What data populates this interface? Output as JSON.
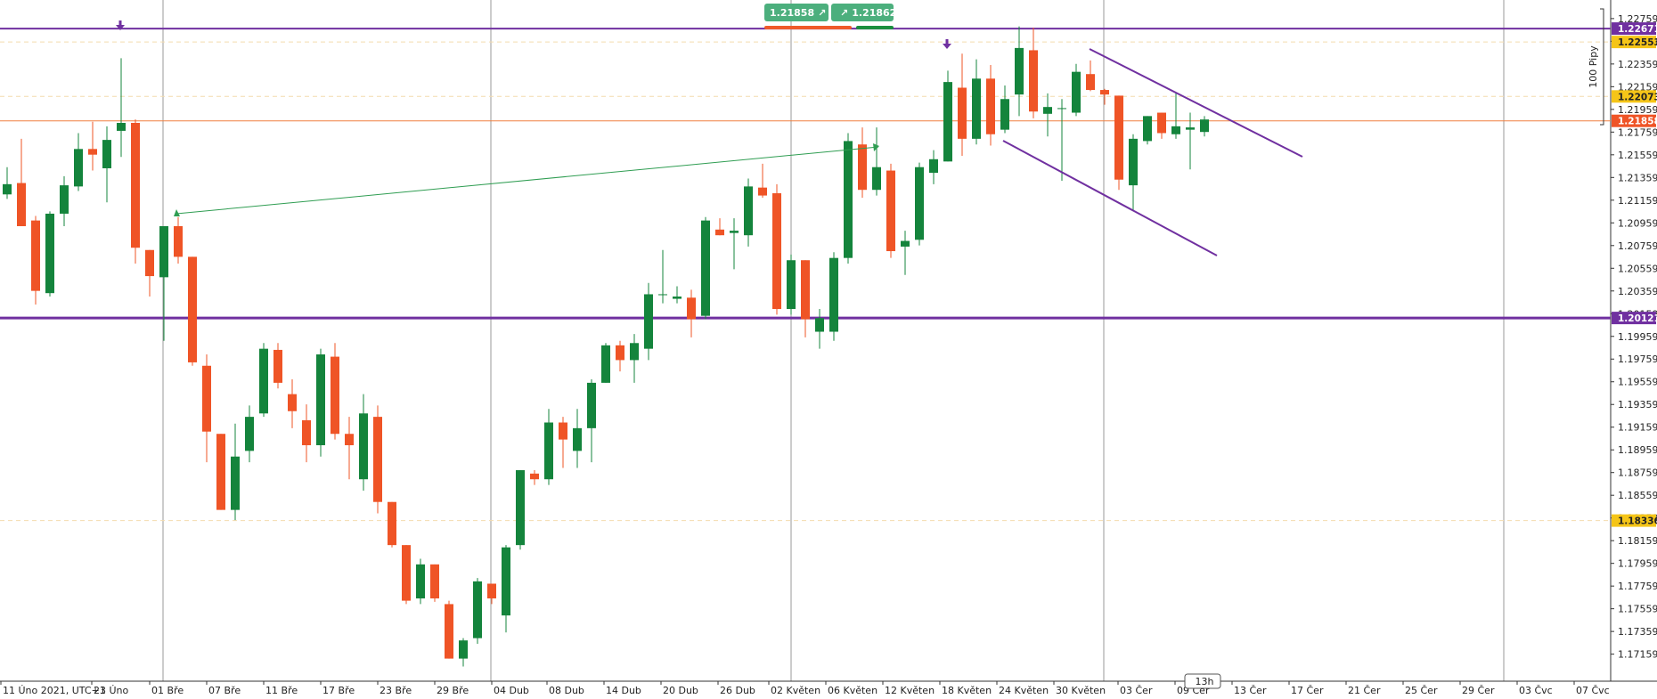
{
  "quote_panel": {
    "sell_price": "1.21858",
    "buy_price": "1.21862",
    "sell_color": "#4caf7d",
    "buy_color": "#4caf7d",
    "sell_bar_color": "#ef5a2b",
    "buy_bar_color": "#1b8f3f",
    "sell_icon": "arrow-up-right-icon",
    "buy_icon": "arrow-up-right-icon"
  },
  "time_label": "13h",
  "range_label": "100 Pipy",
  "colors": {
    "up": "#14843c",
    "down": "#ef5426",
    "purple": "#7030a0",
    "orange_line": "#f08040",
    "yellow_tag": "#f5c518",
    "green_line": "#2f9d52",
    "grid_dash": "#f4dcae"
  },
  "chart_data": {
    "type": "candlestick",
    "symbol_timezone": "UTC+1",
    "y_range": [
      1.1696,
      1.2286
    ],
    "y_ticks": [
      "1.22759",
      "1.22559",
      "1.22359",
      "1.22159",
      "1.21959",
      "1.21759",
      "1.21559",
      "1.21359",
      "1.21159",
      "1.20959",
      "1.20759",
      "1.20559",
      "1.20359",
      "1.20159",
      "1.19959",
      "1.19759",
      "1.19559",
      "1.19359",
      "1.19159",
      "1.18959",
      "1.18759",
      "1.18559",
      "1.18359",
      "1.18159",
      "1.17959",
      "1.17759",
      "1.17559",
      "1.17359",
      "1.17159"
    ],
    "x_labels": [
      "11 Úno 2021, UTC+1",
      "23 Úno",
      "01 Bře",
      "07 Bře",
      "11 Bře",
      "17 Bře",
      "23 Bře",
      "29 Bře",
      "04 Dub",
      "08 Dub",
      "14 Dub",
      "20 Dub",
      "26 Dub",
      "02 Květen",
      "06 Květen",
      "12 Květen",
      "18 Květen",
      "24 Květen",
      "30 Květen",
      "03 Čer",
      "09 Čer",
      "13 Čer",
      "17 Čer",
      "21 Čer",
      "25 Čer",
      "29 Čer",
      "03 Čvc",
      "07 Čvc"
    ],
    "price_tags": [
      {
        "value": "1.22671",
        "kind": "purple"
      },
      {
        "value": "1.22553",
        "kind": "yellow"
      },
      {
        "value": "1.22073",
        "kind": "yellow"
      },
      {
        "value": "1.21858",
        "kind": "orange"
      },
      {
        "value": "1.20121",
        "kind": "purple"
      },
      {
        "value": "1.18336",
        "kind": "yellow"
      }
    ],
    "horizontal_levels": {
      "resistance": 1.22671,
      "support": 1.20121,
      "current": 1.21858,
      "dashed": [
        1.22553,
        1.22073,
        1.18336
      ]
    },
    "candles": [
      {
        "o": 1.2121,
        "h": 1.2145,
        "l": 1.2117,
        "c": 1.213
      },
      {
        "o": 1.2131,
        "h": 1.217,
        "l": 1.2095,
        "c": 1.2093
      },
      {
        "o": 1.2098,
        "h": 1.2102,
        "l": 1.2024,
        "c": 1.2036
      },
      {
        "o": 1.2034,
        "h": 1.2106,
        "l": 1.2031,
        "c": 1.2104
      },
      {
        "o": 1.2104,
        "h": 1.2137,
        "l": 1.2093,
        "c": 1.2129
      },
      {
        "o": 1.2128,
        "h": 1.2175,
        "l": 1.2124,
        "c": 1.2161
      },
      {
        "o": 1.2161,
        "h": 1.2185,
        "l": 1.2142,
        "c": 1.2156
      },
      {
        "o": 1.2144,
        "h": 1.2181,
        "l": 1.2114,
        "c": 1.2169
      },
      {
        "o": 1.2177,
        "h": 1.2241,
        "l": 1.2154,
        "c": 1.2184
      },
      {
        "o": 1.2184,
        "h": 1.2187,
        "l": 1.206,
        "c": 1.2074
      },
      {
        "o": 1.2072,
        "h": 1.2072,
        "l": 1.2031,
        "c": 1.2049
      },
      {
        "o": 1.2048,
        "h": 1.2093,
        "l": 1.1992,
        "c": 1.2093
      },
      {
        "o": 1.2093,
        "h": 1.2101,
        "l": 1.206,
        "c": 1.2066
      },
      {
        "o": 1.2066,
        "h": 1.2066,
        "l": 1.197,
        "c": 1.1973
      },
      {
        "o": 1.197,
        "h": 1.198,
        "l": 1.1885,
        "c": 1.1912
      },
      {
        "o": 1.191,
        "h": 1.191,
        "l": 1.1843,
        "c": 1.1843
      },
      {
        "o": 1.1843,
        "h": 1.1919,
        "l": 1.1834,
        "c": 1.189
      },
      {
        "o": 1.1895,
        "h": 1.1935,
        "l": 1.1885,
        "c": 1.1925
      },
      {
        "o": 1.1928,
        "h": 1.199,
        "l": 1.1925,
        "c": 1.1985
      },
      {
        "o": 1.1984,
        "h": 1.199,
        "l": 1.195,
        "c": 1.1955
      },
      {
        "o": 1.1945,
        "h": 1.1958,
        "l": 1.1915,
        "c": 1.193
      },
      {
        "o": 1.1922,
        "h": 1.1936,
        "l": 1.1885,
        "c": 1.19
      },
      {
        "o": 1.19,
        "h": 1.1985,
        "l": 1.189,
        "c": 1.198
      },
      {
        "o": 1.1978,
        "h": 1.199,
        "l": 1.1905,
        "c": 1.191
      },
      {
        "o": 1.191,
        "h": 1.1925,
        "l": 1.187,
        "c": 1.19
      },
      {
        "o": 1.187,
        "h": 1.1945,
        "l": 1.186,
        "c": 1.1928
      },
      {
        "o": 1.1925,
        "h": 1.1935,
        "l": 1.184,
        "c": 1.185
      },
      {
        "o": 1.185,
        "h": 1.185,
        "l": 1.181,
        "c": 1.1812
      },
      {
        "o": 1.1812,
        "h": 1.1812,
        "l": 1.176,
        "c": 1.1763
      },
      {
        "o": 1.1765,
        "h": 1.18,
        "l": 1.176,
        "c": 1.1795
      },
      {
        "o": 1.1795,
        "h": 1.1795,
        "l": 1.1762,
        "c": 1.1765
      },
      {
        "o": 1.176,
        "h": 1.1763,
        "l": 1.1712,
        "c": 1.1712
      },
      {
        "o": 1.1712,
        "h": 1.173,
        "l": 1.1705,
        "c": 1.1728
      },
      {
        "o": 1.173,
        "h": 1.1783,
        "l": 1.1725,
        "c": 1.178
      },
      {
        "o": 1.1778,
        "h": 1.1778,
        "l": 1.176,
        "c": 1.1765
      },
      {
        "o": 1.175,
        "h": 1.1812,
        "l": 1.1735,
        "c": 1.181
      },
      {
        "o": 1.1812,
        "h": 1.1878,
        "l": 1.1808,
        "c": 1.1878
      },
      {
        "o": 1.1875,
        "h": 1.1878,
        "l": 1.1865,
        "c": 1.187
      },
      {
        "o": 1.187,
        "h": 1.1932,
        "l": 1.1865,
        "c": 1.192
      },
      {
        "o": 1.192,
        "h": 1.1925,
        "l": 1.188,
        "c": 1.1905
      },
      {
        "o": 1.1895,
        "h": 1.1932,
        "l": 1.188,
        "c": 1.1915
      },
      {
        "o": 1.1915,
        "h": 1.1958,
        "l": 1.1885,
        "c": 1.1955
      },
      {
        "o": 1.1955,
        "h": 1.199,
        "l": 1.1955,
        "c": 1.1988
      },
      {
        "o": 1.1988,
        "h": 1.1992,
        "l": 1.1965,
        "c": 1.1975
      },
      {
        "o": 1.1975,
        "h": 1.1998,
        "l": 1.1955,
        "c": 1.199
      },
      {
        "o": 1.1985,
        "h": 1.2043,
        "l": 1.1975,
        "c": 1.2033
      },
      {
        "o": 1.2033,
        "h": 1.2072,
        "l": 1.2025,
        "c": 1.2033
      },
      {
        "o": 1.2029,
        "h": 1.204,
        "l": 1.2025,
        "c": 1.2031
      },
      {
        "o": 1.203,
        "h": 1.2037,
        "l": 1.1995,
        "c": 1.2011
      },
      {
        "o": 1.2014,
        "h": 1.2101,
        "l": 1.2011,
        "c": 1.2098
      },
      {
        "o": 1.209,
        "h": 1.21,
        "l": 1.2085,
        "c": 1.2085
      },
      {
        "o": 1.2087,
        "h": 1.21,
        "l": 1.2055,
        "c": 1.2089
      },
      {
        "o": 1.2085,
        "h": 1.2135,
        "l": 1.2075,
        "c": 1.2128
      },
      {
        "o": 1.2127,
        "h": 1.2148,
        "l": 1.2118,
        "c": 1.212
      },
      {
        "o": 1.2122,
        "h": 1.213,
        "l": 1.2015,
        "c": 1.202
      },
      {
        "o": 1.202,
        "h": 1.2068,
        "l": 1.2015,
        "c": 1.2063
      },
      {
        "o": 1.2063,
        "h": 1.2063,
        "l": 1.1995,
        "c": 1.2011
      },
      {
        "o": 1.2,
        "h": 1.202,
        "l": 1.1985,
        "c": 1.2012
      },
      {
        "o": 1.2,
        "h": 1.207,
        "l": 1.1992,
        "c": 1.2065
      },
      {
        "o": 1.2065,
        "h": 1.2175,
        "l": 1.206,
        "c": 1.2168
      },
      {
        "o": 1.2165,
        "h": 1.218,
        "l": 1.2118,
        "c": 1.2125
      },
      {
        "o": 1.2125,
        "h": 1.218,
        "l": 1.212,
        "c": 1.2145
      },
      {
        "o": 1.2142,
        "h": 1.2148,
        "l": 1.2065,
        "c": 1.2071
      },
      {
        "o": 1.2075,
        "h": 1.2089,
        "l": 1.205,
        "c": 1.208
      },
      {
        "o": 1.2081,
        "h": 1.2149,
        "l": 1.2076,
        "c": 1.2145
      },
      {
        "o": 1.214,
        "h": 1.216,
        "l": 1.213,
        "c": 1.2152
      },
      {
        "o": 1.215,
        "h": 1.223,
        "l": 1.215,
        "c": 1.222
      },
      {
        "o": 1.2215,
        "h": 1.2245,
        "l": 1.2155,
        "c": 1.217
      },
      {
        "o": 1.217,
        "h": 1.224,
        "l": 1.2165,
        "c": 1.2223
      },
      {
        "o": 1.2223,
        "h": 1.2235,
        "l": 1.2164,
        "c": 1.2174
      },
      {
        "o": 1.2178,
        "h": 1.2217,
        "l": 1.2175,
        "c": 1.2205
      },
      {
        "o": 1.2209,
        "h": 1.2269,
        "l": 1.219,
        "c": 1.225
      },
      {
        "o": 1.2248,
        "h": 1.2268,
        "l": 1.2188,
        "c": 1.2194
      },
      {
        "o": 1.2192,
        "h": 1.221,
        "l": 1.2172,
        "c": 1.2198
      },
      {
        "o": 1.2197,
        "h": 1.2205,
        "l": 1.2133,
        "c": 1.2197
      },
      {
        "o": 1.2193,
        "h": 1.2236,
        "l": 1.219,
        "c": 1.2229
      },
      {
        "o": 1.2227,
        "h": 1.2239,
        "l": 1.2212,
        "c": 1.2213
      },
      {
        "o": 1.2213,
        "h": 1.2214,
        "l": 1.22,
        "c": 1.2209
      },
      {
        "o": 1.2208,
        "h": 1.2208,
        "l": 1.2125,
        "c": 1.2134
      },
      {
        "o": 1.2129,
        "h": 1.2174,
        "l": 1.2106,
        "c": 1.217
      },
      {
        "o": 1.2168,
        "h": 1.219,
        "l": 1.2165,
        "c": 1.219
      },
      {
        "o": 1.2193,
        "h": 1.2193,
        "l": 1.217,
        "c": 1.2175
      },
      {
        "o": 1.2174,
        "h": 1.221,
        "l": 1.217,
        "c": 1.2181
      },
      {
        "o": 1.2178,
        "h": 1.2193,
        "l": 1.2143,
        "c": 1.218
      },
      {
        "o": 1.2176,
        "h": 1.219,
        "l": 1.2172,
        "c": 1.2187
      }
    ]
  }
}
